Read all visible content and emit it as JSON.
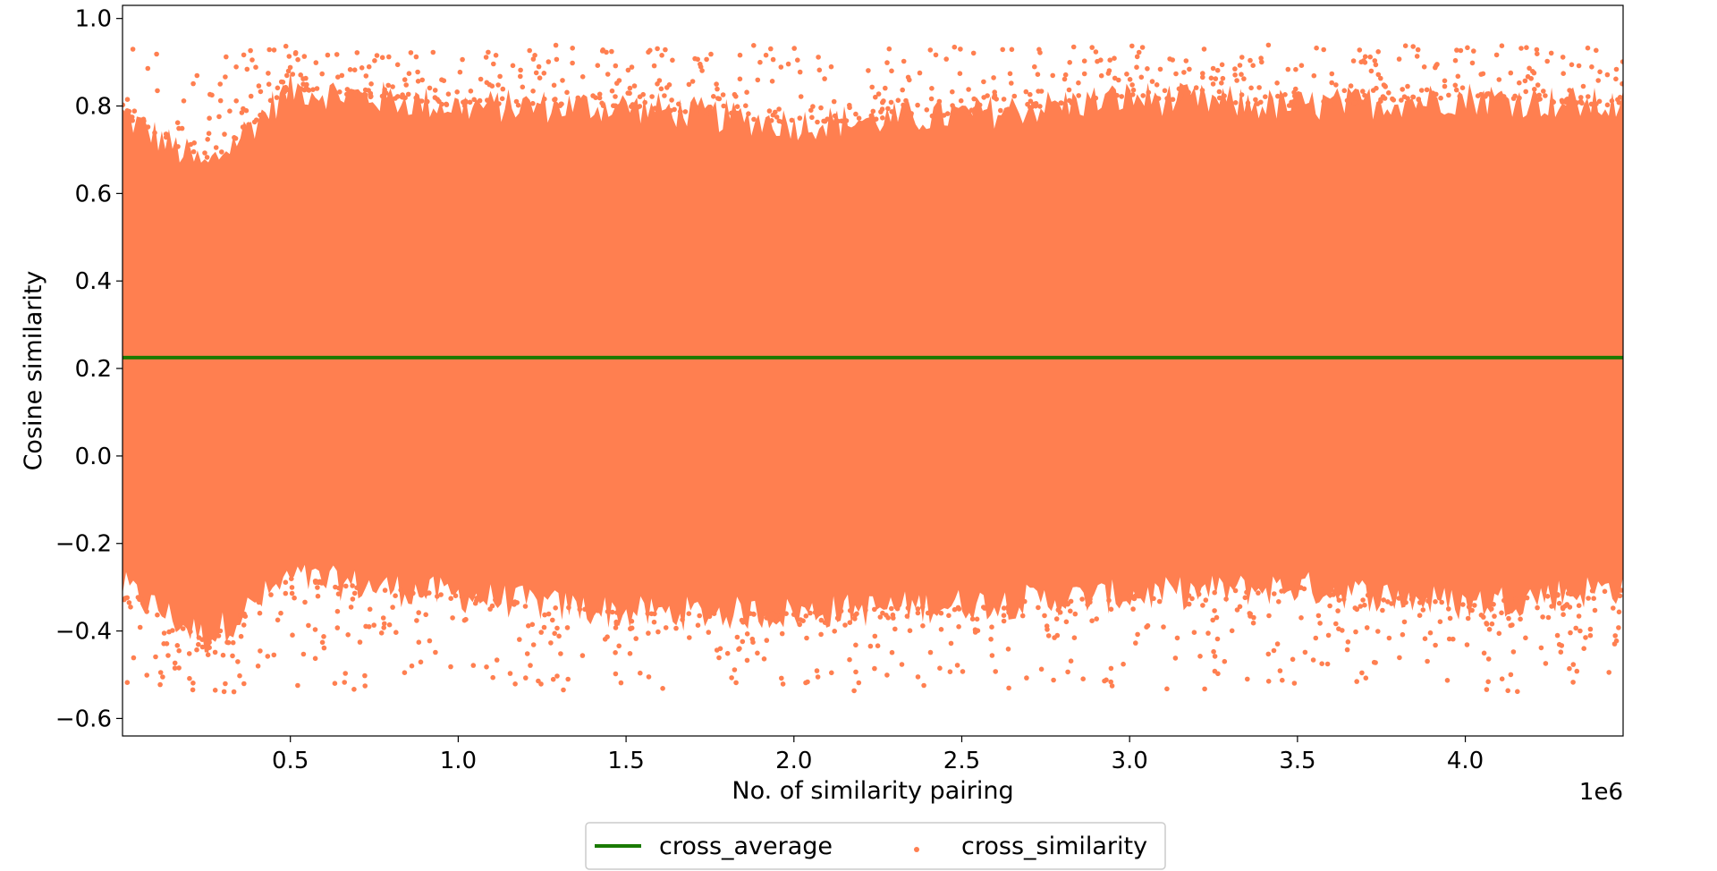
{
  "chart_data": {
    "type": "scatter",
    "xlabel": "No. of similarity pairing",
    "ylabel": "Cosine similarity",
    "x_offset_label": "1e6",
    "xlim": [
      0,
      4470000
    ],
    "ylim": [
      -0.64,
      1.03
    ],
    "x_ticks": [
      0.5,
      1.0,
      1.5,
      2.0,
      2.5,
      3.0,
      3.5,
      4.0
    ],
    "x_tick_labels": [
      "0.5",
      "1.0",
      "1.5",
      "2.0",
      "2.5",
      "3.0",
      "3.5",
      "4.0"
    ],
    "y_ticks": [
      -0.6,
      -0.4,
      -0.2,
      0.0,
      0.2,
      0.4,
      0.6,
      0.8,
      1.0
    ],
    "y_tick_labels": [
      "−0.6",
      "−0.4",
      "−0.2",
      "0.0",
      "0.2",
      "0.4",
      "0.6",
      "0.8",
      "1.0"
    ],
    "series": [
      {
        "name": "cross_average",
        "kind": "line",
        "color": "#1a7a00",
        "x": [
          0,
          4470000
        ],
        "y": [
          0.225,
          0.225
        ]
      },
      {
        "name": "cross_similarity",
        "kind": "scatter",
        "color": "#ff7f50",
        "point_count": 4470000,
        "band_summary": {
          "x": [
            0,
            250000,
            500000,
            1000000,
            1500000,
            2000000,
            2500000,
            3000000,
            3500000,
            4000000,
            4470000
          ],
          "upper_envelope": [
            0.78,
            0.66,
            0.84,
            0.8,
            0.8,
            0.76,
            0.78,
            0.82,
            0.8,
            0.82,
            0.8
          ],
          "lower_envelope": [
            -0.3,
            -0.42,
            -0.28,
            -0.32,
            -0.36,
            -0.36,
            -0.34,
            -0.32,
            -0.3,
            -0.34,
            -0.3
          ],
          "max_outliers": 0.94,
          "min_outliers": -0.54
        }
      }
    ],
    "legend": {
      "placement": "bottom-center",
      "entries": [
        "cross_average",
        "cross_similarity"
      ]
    },
    "grid": false
  }
}
